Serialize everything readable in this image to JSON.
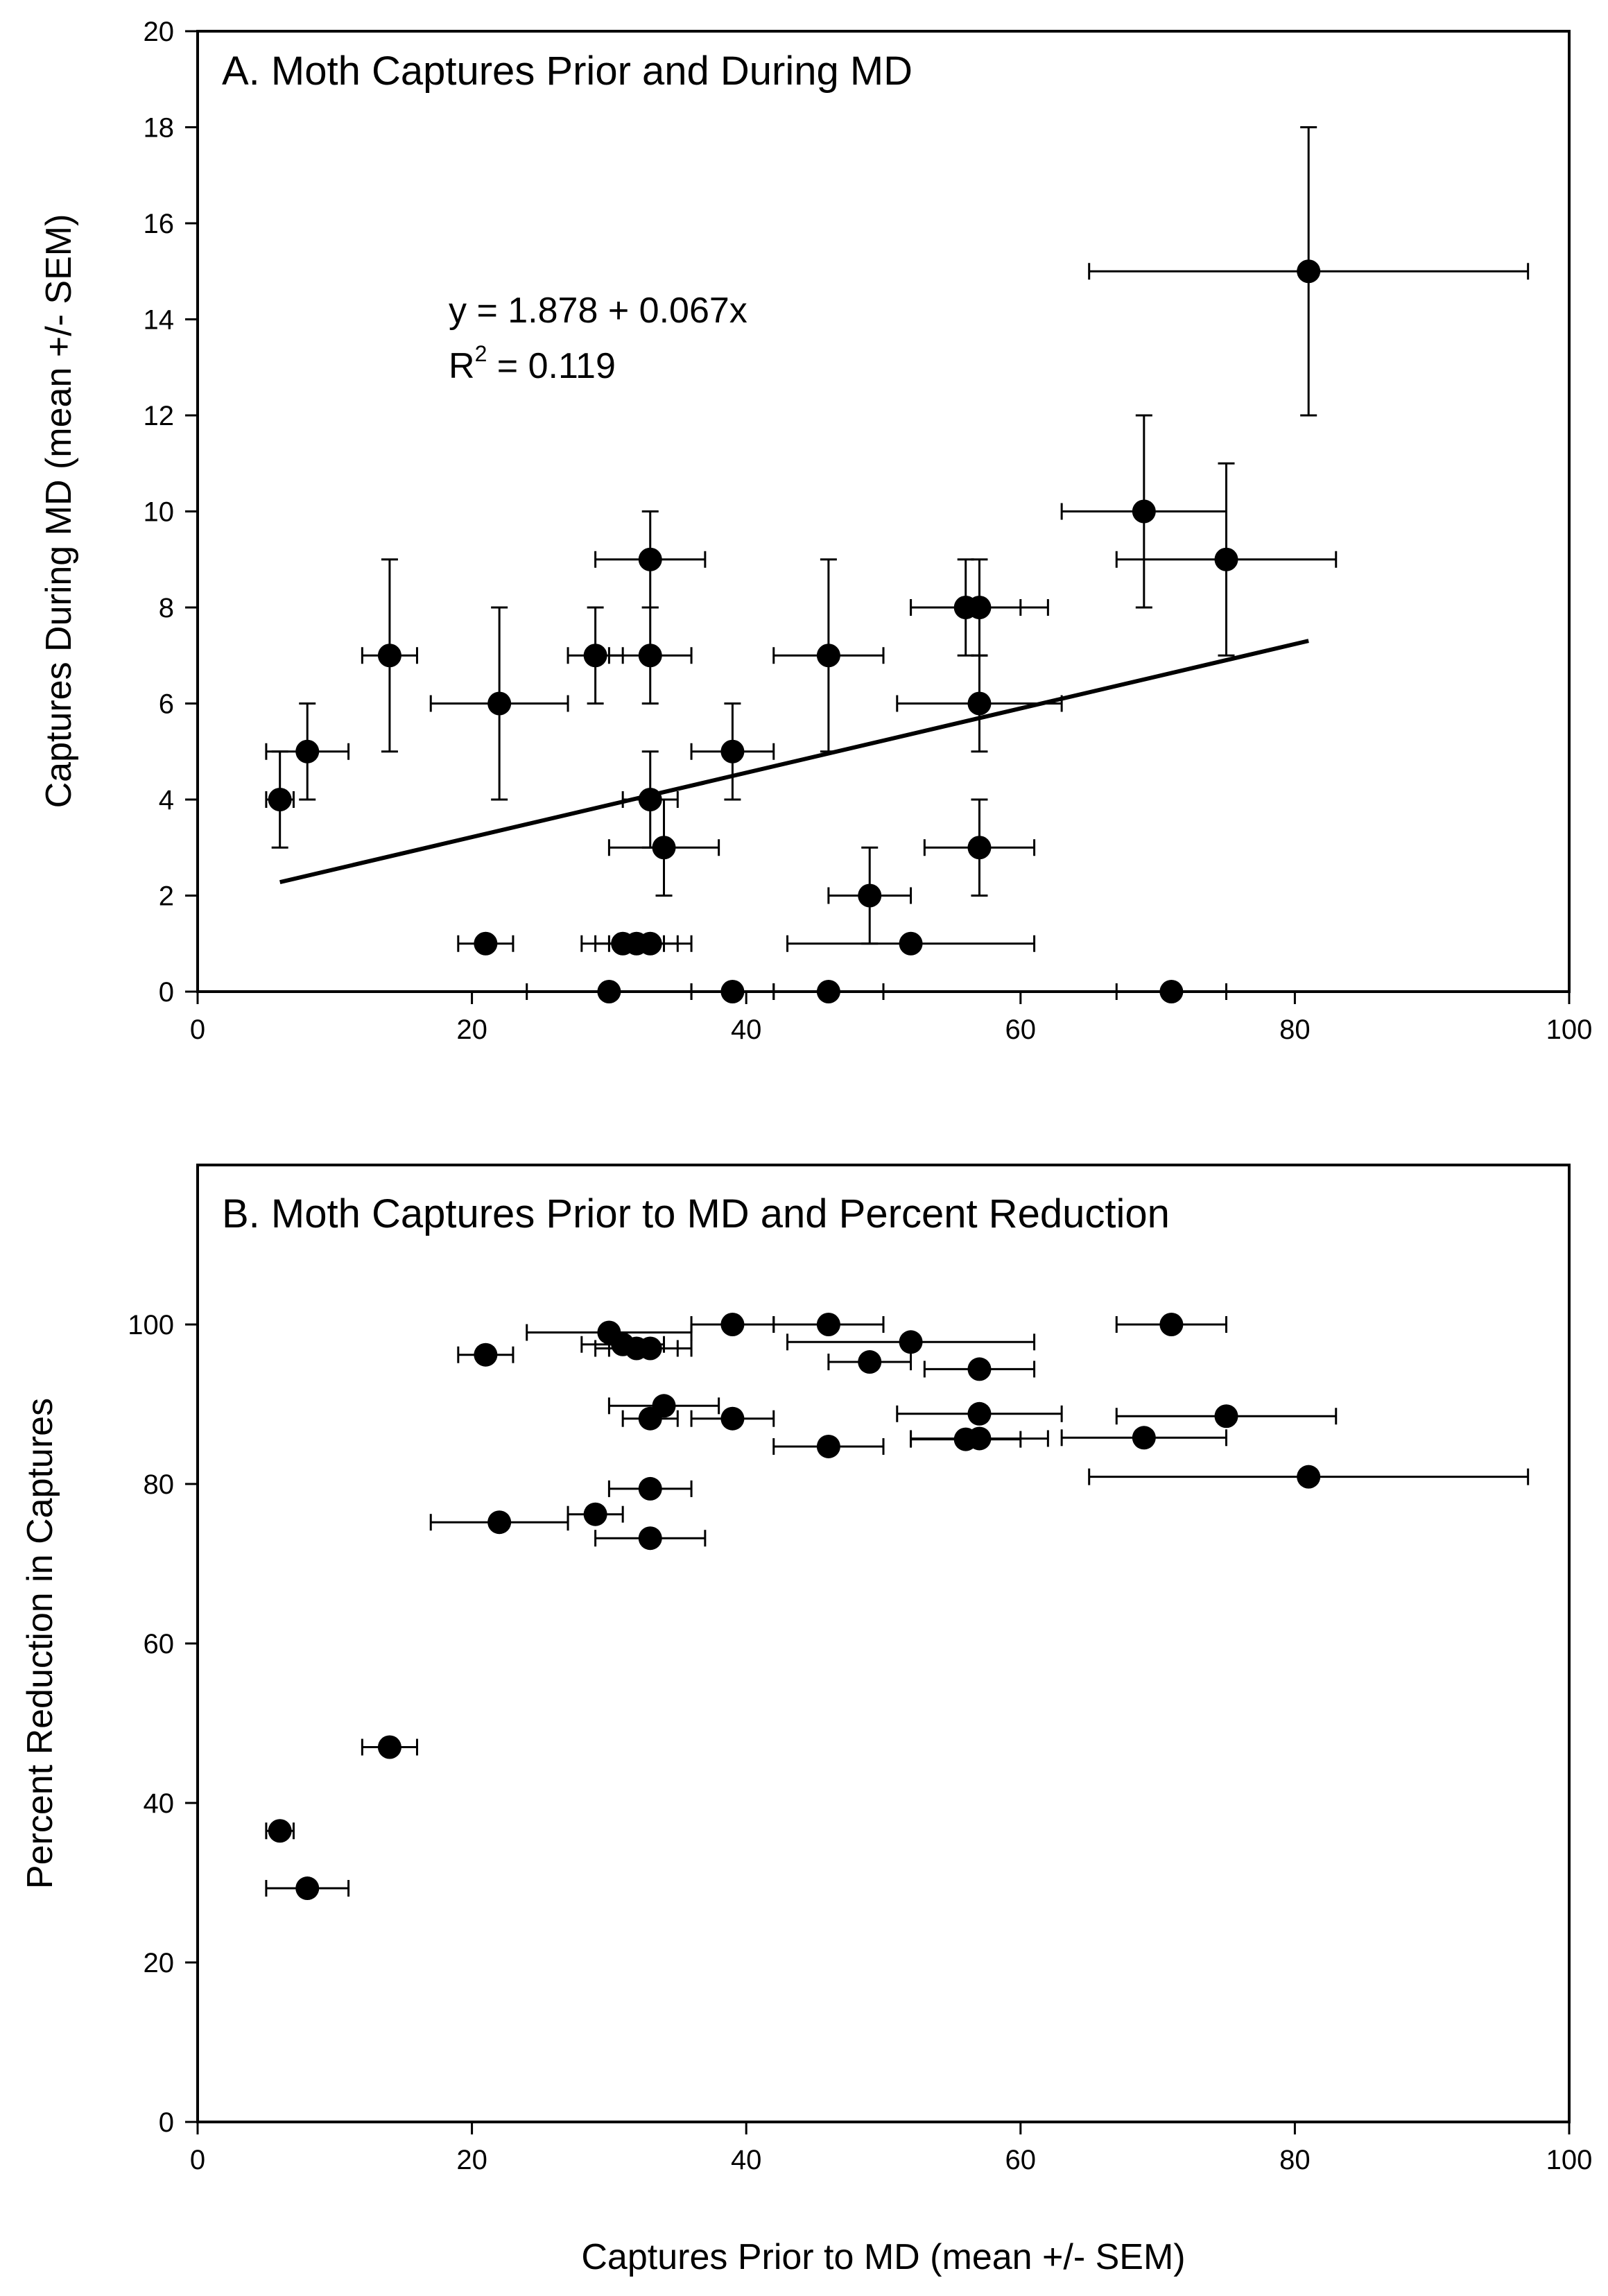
{
  "chart_data": [
    {
      "type": "scatter",
      "title": "A. Moth Captures Prior and During MD",
      "xlabel": "",
      "ylabel": "Captures During MD (mean +/- SEM)",
      "xlim": [
        0,
        100
      ],
      "ylim": [
        0,
        20
      ],
      "xticks": [
        "0",
        "20",
        "40",
        "60",
        "80",
        "100"
      ],
      "yticks": [
        "0",
        "2",
        "4",
        "6",
        "8",
        "10",
        "12",
        "14",
        "16",
        "18",
        "20"
      ],
      "grid": false,
      "annotation": {
        "equation": "y = 1.878 + 0.067x",
        "r2_prefix": "R",
        "r2_sup": "2",
        "r2_suffix": " = 0.119"
      },
      "regression": {
        "intercept": 1.878,
        "slope": 0.067,
        "x_range": [
          6,
          81
        ]
      },
      "points": [
        {
          "x": 6,
          "y": 4,
          "xerr": 1,
          "yerr": 1
        },
        {
          "x": 8,
          "y": 5,
          "xerr": 3,
          "yerr": 1
        },
        {
          "x": 14,
          "y": 7,
          "xerr": 2,
          "yerr": 2
        },
        {
          "x": 21,
          "y": 1,
          "xerr": 2,
          "yerr": 0
        },
        {
          "x": 22,
          "y": 6,
          "xerr": 5,
          "yerr": 2
        },
        {
          "x": 29,
          "y": 7,
          "xerr": 2,
          "yerr": 1
        },
        {
          "x": 30,
          "y": 0,
          "xerr": 6,
          "yerr": 0
        },
        {
          "x": 31,
          "y": 1,
          "xerr": 3,
          "yerr": 0
        },
        {
          "x": 32,
          "y": 1,
          "xerr": 3,
          "yerr": 0
        },
        {
          "x": 33,
          "y": 1,
          "xerr": 3,
          "yerr": 0
        },
        {
          "x": 33,
          "y": 9,
          "xerr": 4,
          "yerr": 1
        },
        {
          "x": 33,
          "y": 7,
          "xerr": 3,
          "yerr": 1
        },
        {
          "x": 33,
          "y": 4,
          "xerr": 2,
          "yerr": 1
        },
        {
          "x": 34,
          "y": 3,
          "xerr": 4,
          "yerr": 1
        },
        {
          "x": 39,
          "y": 5,
          "xerr": 3,
          "yerr": 1
        },
        {
          "x": 39,
          "y": 0,
          "xerr": 3,
          "yerr": 0
        },
        {
          "x": 46,
          "y": 7,
          "xerr": 4,
          "yerr": 2
        },
        {
          "x": 46,
          "y": 0,
          "xerr": 4,
          "yerr": 0
        },
        {
          "x": 49,
          "y": 2,
          "xerr": 3,
          "yerr": 1
        },
        {
          "x": 52,
          "y": 1,
          "xerr": 9,
          "yerr": 0
        },
        {
          "x": 56,
          "y": 8,
          "xerr": 4,
          "yerr": 1
        },
        {
          "x": 57,
          "y": 8,
          "xerr": 5,
          "yerr": 1
        },
        {
          "x": 57,
          "y": 6,
          "xerr": 6,
          "yerr": 1
        },
        {
          "x": 57,
          "y": 3,
          "xerr": 4,
          "yerr": 1
        },
        {
          "x": 69,
          "y": 10,
          "xerr": 6,
          "yerr": 2
        },
        {
          "x": 71,
          "y": 0,
          "xerr": 4,
          "yerr": 0
        },
        {
          "x": 75,
          "y": 9,
          "xerr": 8,
          "yerr": 2
        },
        {
          "x": 81,
          "y": 15,
          "xerr": 16,
          "yerr": 3
        }
      ]
    },
    {
      "type": "scatter",
      "title": "B. Moth Captures Prior to MD and Percent Reduction",
      "xlabel": "Captures Prior to MD (mean +/- SEM)",
      "ylabel": "Percent Reduction in Captures",
      "xlim": [
        0,
        100
      ],
      "ylim": [
        0,
        120
      ],
      "xticks": [
        "0",
        "20",
        "40",
        "60",
        "80",
        "100"
      ],
      "yticks": [
        "0",
        "20",
        "40",
        "60",
        "80",
        "100"
      ],
      "grid": false,
      "points": [
        {
          "x": 6,
          "y": 36.5,
          "xerr": 1
        },
        {
          "x": 8,
          "y": 29.3,
          "xerr": 3
        },
        {
          "x": 14,
          "y": 47,
          "xerr": 2
        },
        {
          "x": 21,
          "y": 96.2,
          "xerr": 2
        },
        {
          "x": 22,
          "y": 75.2,
          "xerr": 5
        },
        {
          "x": 29,
          "y": 76.2,
          "xerr": 2
        },
        {
          "x": 30,
          "y": 99,
          "xerr": 6
        },
        {
          "x": 31,
          "y": 97.5,
          "xerr": 3
        },
        {
          "x": 32,
          "y": 97,
          "xerr": 3
        },
        {
          "x": 33,
          "y": 97,
          "xerr": 3
        },
        {
          "x": 33,
          "y": 79.4,
          "xerr": 3
        },
        {
          "x": 33,
          "y": 73.2,
          "xerr": 4
        },
        {
          "x": 33,
          "y": 88.2,
          "xerr": 2
        },
        {
          "x": 34,
          "y": 89.8,
          "xerr": 4
        },
        {
          "x": 39,
          "y": 100,
          "xerr": 3
        },
        {
          "x": 39,
          "y": 88.2,
          "xerr": 3
        },
        {
          "x": 46,
          "y": 100,
          "xerr": 4
        },
        {
          "x": 46,
          "y": 84.7,
          "xerr": 4
        },
        {
          "x": 49,
          "y": 95.3,
          "xerr": 3
        },
        {
          "x": 52,
          "y": 97.8,
          "xerr": 9
        },
        {
          "x": 56,
          "y": 85.6,
          "xerr": 4
        },
        {
          "x": 57,
          "y": 85.7,
          "xerr": 5
        },
        {
          "x": 57,
          "y": 88.8,
          "xerr": 6
        },
        {
          "x": 57,
          "y": 94.4,
          "xerr": 4
        },
        {
          "x": 69,
          "y": 85.8,
          "xerr": 6
        },
        {
          "x": 71,
          "y": 100,
          "xerr": 4
        },
        {
          "x": 75,
          "y": 88.5,
          "xerr": 8
        },
        {
          "x": 81,
          "y": 80.9,
          "xerr": 16
        }
      ]
    }
  ]
}
